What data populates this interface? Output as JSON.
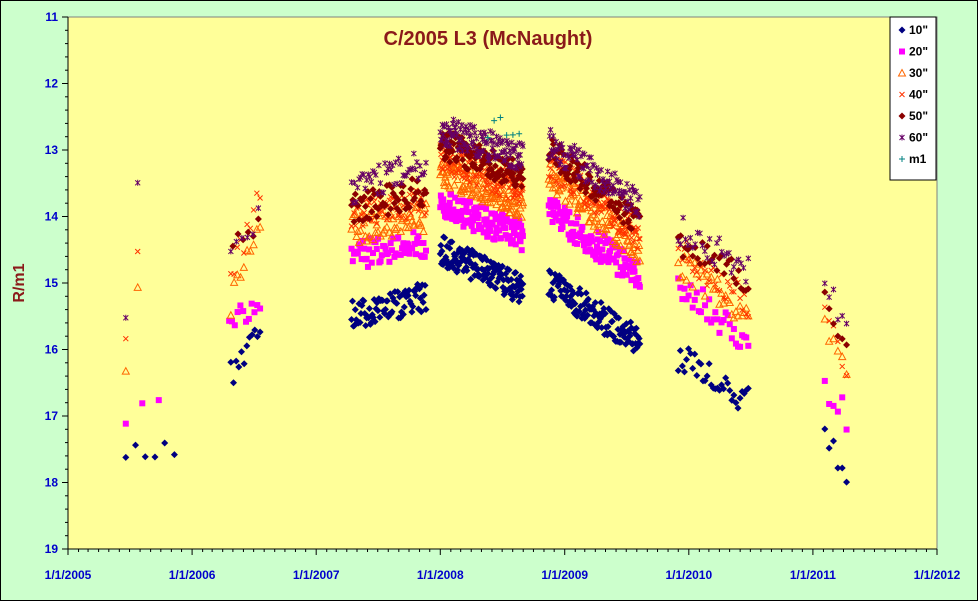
{
  "chart_data": {
    "type": "scatter",
    "title": "C/2005 L3 (McNaught)",
    "xlabel": "",
    "ylabel": "R/m1",
    "y_inverted": true,
    "ylim": [
      11,
      19
    ],
    "xlim": [
      "2005-01-01",
      "2012-01-01"
    ],
    "x_ticks": [
      "1/1/2005",
      "1/1/2006",
      "1/1/2007",
      "1/1/2008",
      "1/1/2009",
      "1/1/2010",
      "1/1/2011",
      "1/1/2012"
    ],
    "y_ticks": [
      "11",
      "12",
      "13",
      "14",
      "15",
      "16",
      "17",
      "18",
      "19"
    ],
    "grid": false,
    "legend_position": "top-right",
    "colors": {
      "plot_background": "#ffff99",
      "outer_background": "#ccffcc",
      "title": "#8b1a1a",
      "tick_labels": "#0000cc"
    },
    "series": [
      {
        "name": "10\"",
        "marker": "diamond",
        "color": "#000080",
        "segments": [
          {
            "start": "2005-06-20",
            "end": "2005-11-10",
            "m_start": 17.5,
            "m_end": 17.5,
            "n": 6
          },
          {
            "start": "2006-04-25",
            "end": "2006-07-20",
            "m_start": 16.4,
            "m_end": 15.7,
            "n": 12
          },
          {
            "start": "2007-04-15",
            "end": "2007-11-20",
            "m_start": 15.5,
            "m_end": 15.2,
            "n": 80
          },
          {
            "start": "2008-01-01",
            "end": "2008-08-31",
            "m_start": 14.5,
            "m_end": 15.1,
            "n": 150
          },
          {
            "start": "2008-11-15",
            "end": "2009-08-10",
            "m_start": 15.0,
            "m_end": 15.9,
            "n": 130
          },
          {
            "start": "2009-12-01",
            "end": "2010-06-25",
            "m_start": 16.1,
            "m_end": 16.8,
            "n": 35
          },
          {
            "start": "2011-02-05",
            "end": "2011-04-10",
            "m_start": 17.4,
            "m_end": 17.9,
            "n": 6
          }
        ]
      },
      {
        "name": "20\"",
        "marker": "square",
        "color": "#ff00ff",
        "segments": [
          {
            "start": "2005-06-20",
            "end": "2005-09-25",
            "m_start": 17.0,
            "m_end": 16.8,
            "n": 3
          },
          {
            "start": "2006-04-20",
            "end": "2006-07-20",
            "m_start": 15.7,
            "m_end": 15.2,
            "n": 12
          },
          {
            "start": "2007-04-15",
            "end": "2007-11-20",
            "m_start": 14.6,
            "m_end": 14.4,
            "n": 60
          },
          {
            "start": "2008-01-01",
            "end": "2008-08-31",
            "m_start": 13.8,
            "m_end": 14.3,
            "n": 140
          },
          {
            "start": "2008-11-15",
            "end": "2009-08-10",
            "m_start": 13.9,
            "m_end": 14.9,
            "n": 120
          },
          {
            "start": "2009-12-01",
            "end": "2010-06-25",
            "m_start": 15.0,
            "m_end": 15.9,
            "n": 35
          },
          {
            "start": "2011-02-05",
            "end": "2011-04-10",
            "m_start": 16.5,
            "m_end": 17.0,
            "n": 6
          }
        ]
      },
      {
        "name": "30\"",
        "marker": "triangle",
        "color": "#ff6600",
        "segments": [
          {
            "start": "2005-06-20",
            "end": "2005-07-25",
            "m_start": 16.5,
            "m_end": 15.1,
            "n": 2
          },
          {
            "start": "2006-04-25",
            "end": "2006-07-20",
            "m_start": 15.3,
            "m_end": 14.2,
            "n": 10
          },
          {
            "start": "2007-04-15",
            "end": "2007-11-20",
            "m_start": 14.2,
            "m_end": 14.0,
            "n": 60
          },
          {
            "start": "2008-01-01",
            "end": "2008-08-31",
            "m_start": 13.3,
            "m_end": 13.8,
            "n": 130
          },
          {
            "start": "2008-11-15",
            "end": "2009-08-10",
            "m_start": 13.4,
            "m_end": 14.5,
            "n": 110
          },
          {
            "start": "2009-12-01",
            "end": "2010-06-25",
            "m_start": 14.7,
            "m_end": 15.5,
            "n": 35
          },
          {
            "start": "2011-02-05",
            "end": "2011-04-10",
            "m_start": 15.7,
            "m_end": 16.4,
            "n": 6
          }
        ]
      },
      {
        "name": "40\"",
        "marker": "x",
        "color": "#ff3300",
        "segments": [
          {
            "start": "2005-06-20",
            "end": "2005-07-25",
            "m_start": 16.0,
            "m_end": 14.6,
            "n": 2
          },
          {
            "start": "2006-04-25",
            "end": "2006-07-20",
            "m_start": 15.0,
            "m_end": 13.5,
            "n": 10
          },
          {
            "start": "2007-04-15",
            "end": "2007-11-20",
            "m_start": 14.0,
            "m_end": 13.8,
            "n": 60
          },
          {
            "start": "2008-01-01",
            "end": "2008-08-31",
            "m_start": 13.1,
            "m_end": 13.6,
            "n": 130
          },
          {
            "start": "2008-11-15",
            "end": "2009-08-10",
            "m_start": 13.2,
            "m_end": 14.3,
            "n": 110
          },
          {
            "start": "2009-12-01",
            "end": "2010-06-25",
            "m_start": 14.5,
            "m_end": 15.3,
            "n": 35
          },
          {
            "start": "2011-02-05",
            "end": "2011-04-10",
            "m_start": 15.5,
            "m_end": 16.2,
            "n": 6
          }
        ]
      },
      {
        "name": "50\"",
        "marker": "diamond",
        "color": "#8b0000",
        "segments": [
          {
            "start": "2006-05-01",
            "end": "2006-07-15",
            "m_start": 14.5,
            "m_end": 14.0,
            "n": 6
          },
          {
            "start": "2007-04-15",
            "end": "2007-11-20",
            "m_start": 13.9,
            "m_end": 13.6,
            "n": 60
          },
          {
            "start": "2008-01-01",
            "end": "2008-08-31",
            "m_start": 12.9,
            "m_end": 13.4,
            "n": 130
          },
          {
            "start": "2008-11-15",
            "end": "2009-08-10",
            "m_start": 13.0,
            "m_end": 14.1,
            "n": 100
          },
          {
            "start": "2009-12-01",
            "end": "2010-06-25",
            "m_start": 14.4,
            "m_end": 15.0,
            "n": 30
          },
          {
            "start": "2011-02-05",
            "end": "2011-04-10",
            "m_start": 15.3,
            "m_end": 16.0,
            "n": 6
          }
        ]
      },
      {
        "name": "60\"",
        "marker": "star",
        "color": "#660066",
        "segments": [
          {
            "start": "2005-06-20",
            "end": "2005-07-25",
            "m_start": 15.5,
            "m_end": 13.7,
            "n": 2
          },
          {
            "start": "2006-04-25",
            "end": "2006-07-15",
            "m_start": 14.6,
            "m_end": 14.0,
            "n": 6
          },
          {
            "start": "2007-04-15",
            "end": "2007-11-20",
            "m_start": 13.6,
            "m_end": 13.2,
            "n": 50
          },
          {
            "start": "2008-01-01",
            "end": "2008-08-31",
            "m_start": 12.7,
            "m_end": 13.1,
            "n": 120
          },
          {
            "start": "2008-11-15",
            "end": "2009-08-10",
            "m_start": 12.9,
            "m_end": 13.8,
            "n": 100
          },
          {
            "start": "2009-12-01",
            "end": "2010-06-25",
            "m_start": 14.2,
            "m_end": 14.8,
            "n": 30
          },
          {
            "start": "2011-02-05",
            "end": "2011-04-10",
            "m_start": 15.1,
            "m_end": 15.6,
            "n": 6
          }
        ]
      },
      {
        "name": "m1",
        "marker": "plus",
        "color": "#008080",
        "segments": [
          {
            "start": "2008-05-20",
            "end": "2008-08-20",
            "m_start": 12.8,
            "m_end": 12.6,
            "n": 6
          }
        ]
      }
    ]
  }
}
